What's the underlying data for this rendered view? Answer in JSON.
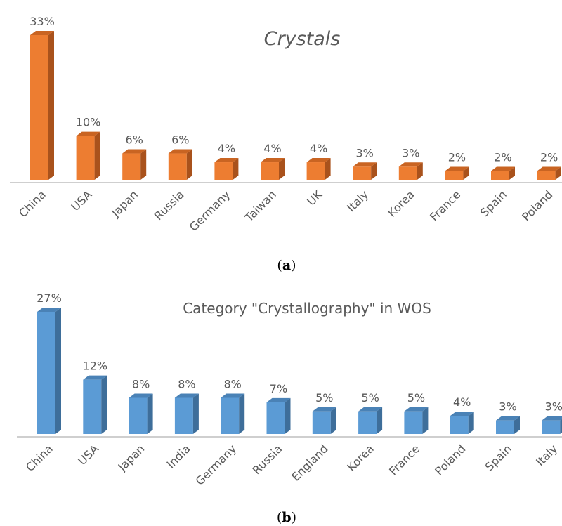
{
  "colors": {
    "orange_front": "#ED7D31",
    "orange_side": "#A9521C",
    "orange_top": "#C96422",
    "blue_front": "#5B9BD5",
    "blue_side": "#3E6E9A",
    "blue_top": "#4A82B6",
    "axis": "#BFBFBF"
  },
  "chart_data": [
    {
      "type": "bar",
      "title": "Crystals",
      "caption": "a",
      "categories": [
        "China",
        "USA",
        "Japan",
        "Russia",
        "Germany",
        "Taiwan",
        "UK",
        "Italy",
        "Korea",
        "France",
        "Spain",
        "Poland"
      ],
      "values": [
        33,
        10,
        6,
        6,
        4,
        4,
        4,
        3,
        3,
        2,
        2,
        2
      ],
      "labels": [
        "33%",
        "10%",
        "6%",
        "6%",
        "4%",
        "4%",
        "4%",
        "3%",
        "3%",
        "2%",
        "2%",
        "2%"
      ],
      "unit": "%",
      "style": "3d-column",
      "grid": false,
      "legend": "none"
    },
    {
      "type": "bar",
      "title": "Category \"Crystallography\" in WOS",
      "caption": "b",
      "categories": [
        "China",
        "USA",
        "Japan",
        "India",
        "Germany",
        "Russia",
        "England",
        "Korea",
        "France",
        "Poland",
        "Spain",
        "Italy"
      ],
      "values": [
        27,
        12,
        8,
        8,
        8,
        7,
        5,
        5,
        5,
        4,
        3,
        3
      ],
      "labels": [
        "27%",
        "12%",
        "8%",
        "8%",
        "8%",
        "7%",
        "5%",
        "5%",
        "5%",
        "4%",
        "3%",
        "3%"
      ],
      "unit": "%",
      "style": "3d-column",
      "grid": false,
      "legend": "none"
    }
  ]
}
